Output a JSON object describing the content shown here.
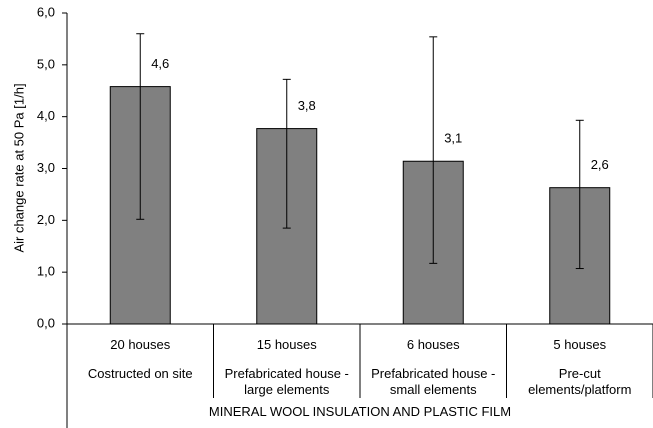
{
  "chart_data": {
    "type": "bar",
    "y_label": "Air change rate at 50 Pa [1/h]",
    "categories": [
      "20 houses",
      "15 houses",
      "6 houses",
      "5 houses"
    ],
    "subcategories": [
      "Costructed on site",
      "Prefabricated house - large elements",
      "Prefabricated house - small elements",
      "Pre-cut elements/platform"
    ],
    "group_label": "MINERAL WOOL INSULATION AND PLASTIC FILM",
    "values": [
      4.58,
      3.77,
      3.14,
      2.63
    ],
    "value_labels": [
      "4,6",
      "3,8",
      "3,1",
      "2,6"
    ],
    "whisker_low": [
      2.02,
      1.85,
      1.17,
      1.07
    ],
    "whisker_high": [
      5.6,
      4.72,
      5.54,
      3.93
    ],
    "color": "#808080",
    "ylim": [
      0,
      6
    ],
    "yticks": [
      {
        "value": 0,
        "label": "0,0"
      },
      {
        "value": 1,
        "label": "1,0"
      },
      {
        "value": 2,
        "label": "2,0"
      },
      {
        "value": 3,
        "label": "3,0"
      },
      {
        "value": 4,
        "label": "4,0"
      },
      {
        "value": 5,
        "label": "5,0"
      },
      {
        "value": 6,
        "label": "6,0"
      }
    ]
  }
}
